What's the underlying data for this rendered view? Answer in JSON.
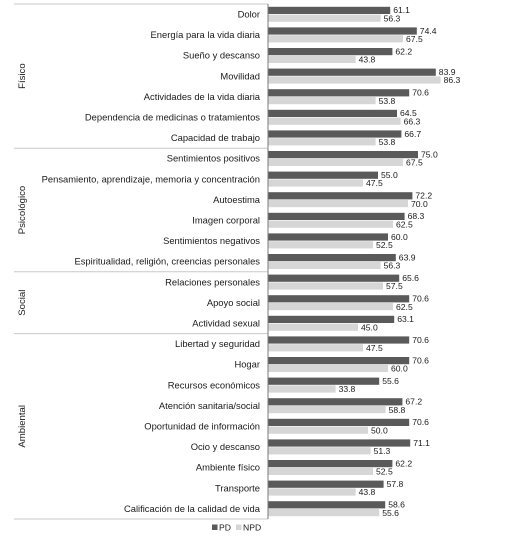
{
  "chart_data": {
    "type": "bar",
    "orientation": "horizontal",
    "xlim": [
      0,
      100
    ],
    "grid": false,
    "legend_position": "bottom",
    "colors": {
      "PD": "#5a5a5a",
      "NPD": "#d6d6d6",
      "divider": "#c8c8c8",
      "axis": "#7a7a7a"
    },
    "series": [
      {
        "name": "PD",
        "values": [
          61.1,
          74.4,
          62.2,
          83.9,
          70.6,
          64.5,
          66.7,
          75.0,
          55.0,
          72.2,
          68.3,
          60.0,
          63.9,
          65.6,
          70.6,
          63.1,
          70.6,
          70.6,
          55.6,
          67.2,
          70.6,
          71.1,
          62.2,
          57.8,
          58.6
        ]
      },
      {
        "name": "NPD",
        "values": [
          56.3,
          67.5,
          43.8,
          86.3,
          53.8,
          66.3,
          53.8,
          67.5,
          47.5,
          70.0,
          62.5,
          52.5,
          56.3,
          57.5,
          62.5,
          45.0,
          47.5,
          60.0,
          33.8,
          58.8,
          50.0,
          51.3,
          52.5,
          43.8,
          55.6
        ]
      }
    ],
    "value_labels": {
      "PD": [
        "61.1",
        "74.4",
        "62.2",
        "83.9",
        "70.6",
        "64.5",
        "66.7",
        "75.0",
        "55.0",
        "72.2",
        "68.3",
        "60.0",
        "63.9",
        "65.6",
        "70.6",
        "63.1",
        "70.6",
        "70.6",
        "55.6",
        "67.2",
        "70.6",
        "71.1",
        "62.2",
        "57.8",
        "58.6"
      ],
      "NPD": [
        "56.3",
        "67.5",
        "43.8",
        "86.3",
        "53.8",
        "66.3",
        "53.8",
        "67.5",
        "47.5",
        "70.0",
        "62.5",
        "52.5",
        "56.3",
        "57.5",
        "62.5",
        "45.0",
        "47.5",
        "60.0",
        "33.8",
        "58.8",
        "50.0",
        "51.3",
        "52.5",
        "43.8",
        "55.6"
      ]
    },
    "categories": [
      "Dolor",
      "Energía para la vida diaria",
      "Sueño y descanso",
      "Movilidad",
      "Actividades de la vida diaria",
      "Dependencia de medicinas o tratamientos",
      "Capacidad de trabajo",
      "Sentimientos positivos",
      "Pensamiento, aprendizaje, memoria y concentración",
      "Autoestima",
      "Imagen corporal",
      "Sentimientos negativos",
      "Espiritualidad, religión, creencias personales",
      "Relaciones personales",
      "Apoyo social",
      "Actividad sexual",
      "Libertad y seguridad",
      "Hogar",
      "Recursos económicos",
      "Atención sanitaria/social",
      "Oportunidad de información",
      "Ocio y descanso",
      "Ambiente físico",
      "Transporte",
      "Calificación de la calidad de vida"
    ],
    "groups": [
      {
        "label": "Físico",
        "start": 0,
        "end": 6
      },
      {
        "label": "Psicológico",
        "start": 7,
        "end": 12
      },
      {
        "label": "Social",
        "start": 13,
        "end": 15
      },
      {
        "label": "Ambiental",
        "start": 16,
        "end": 24
      }
    ],
    "legend": [
      "PD",
      "NPD"
    ]
  }
}
